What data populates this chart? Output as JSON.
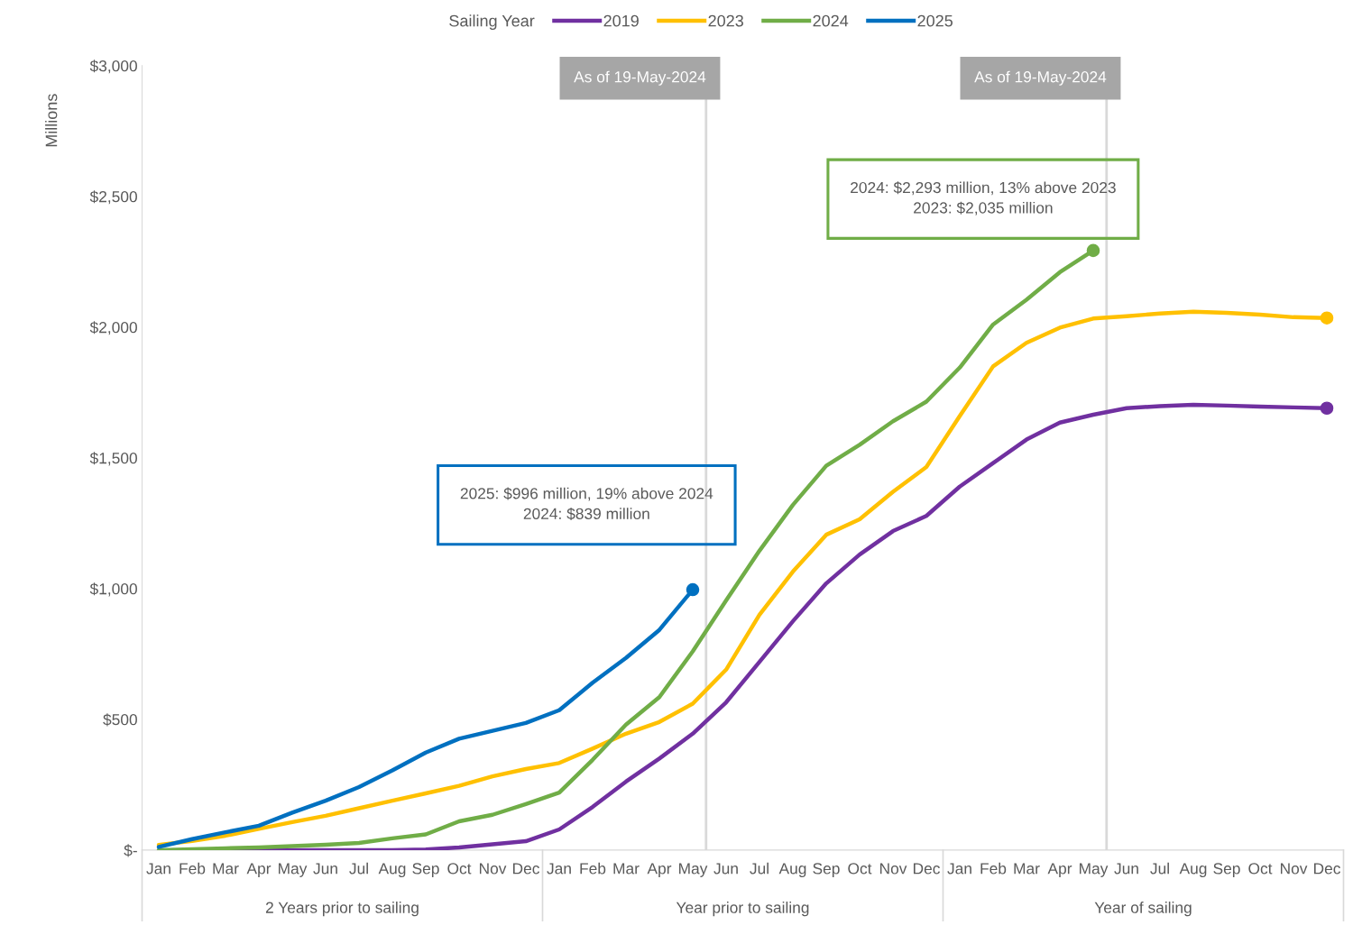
{
  "chart_data": {
    "type": "line",
    "legend_title": "Sailing Year",
    "ylabel": "Millions",
    "legend": "top",
    "categories": [
      "Jan",
      "Feb",
      "Mar",
      "Apr",
      "May",
      "Jun",
      "Jul",
      "Aug",
      "Sep",
      "Oct",
      "Nov",
      "Dec",
      "Jan",
      "Feb",
      "Mar",
      "Apr",
      "May",
      "Jun",
      "Jul",
      "Aug",
      "Sep",
      "Oct",
      "Nov",
      "Dec",
      "Jan",
      "Feb",
      "Mar",
      "Apr",
      "May",
      "Jun",
      "Jul",
      "Aug",
      "Sep",
      "Oct",
      "Nov",
      "Dec"
    ],
    "ylim": [
      0,
      3000
    ],
    "yticks": [
      {
        "value": 0,
        "label": "$-"
      },
      {
        "value": 500,
        "label": "$500"
      },
      {
        "value": 1000,
        "label": "$1,000"
      },
      {
        "value": 1500,
        "label": "$1,500"
      },
      {
        "value": 2000,
        "label": "$2,000"
      },
      {
        "value": 2500,
        "label": "$2,500"
      },
      {
        "value": 3000,
        "label": "$3,000"
      }
    ],
    "series": [
      {
        "name": "2019",
        "color": "#7030a0",
        "values": [
          null,
          null,
          0,
          0,
          0,
          0,
          0,
          0,
          2,
          10,
          22,
          34,
          79,
          165,
          262,
          350,
          445,
          565,
          720,
          875,
          1020,
          1130,
          1220,
          1278,
          1390,
          1480,
          1570,
          1635,
          1665,
          1690,
          1698,
          1703,
          1700,
          1696,
          1693,
          1690
        ]
      },
      {
        "name": "2023",
        "color": "#ffc000",
        "values": [
          20,
          35,
          55,
          81,
          107,
          131,
          160,
          189,
          217,
          246,
          282,
          310,
          333,
          388,
          445,
          490,
          560,
          690,
          900,
          1065,
          1206,
          1265,
          1370,
          1465,
          1660,
          1850,
          1940,
          1998,
          2033,
          2042,
          2052,
          2059,
          2055,
          2048,
          2038,
          2035
        ]
      },
      {
        "name": "2024",
        "color": "#70ad47",
        "values": [
          0,
          3,
          7,
          10,
          15,
          20,
          27,
          45,
          60,
          110,
          135,
          176,
          220,
          345,
          480,
          585,
          760,
          955,
          1145,
          1320,
          1470,
          1550,
          1640,
          1715,
          1845,
          2010,
          2105,
          2210,
          2293,
          null,
          null,
          null,
          null,
          null,
          null,
          null
        ]
      },
      {
        "name": "2025",
        "color": "#0070c0",
        "values": [
          12,
          42,
          68,
          93,
          143,
          189,
          241,
          305,
          373,
          426,
          456,
          486,
          535,
          640,
          735,
          842,
          996,
          null,
          null,
          null,
          null,
          null,
          null,
          null,
          null,
          null,
          null,
          null,
          null,
          null,
          null,
          null,
          null,
          null,
          null,
          null
        ]
      },
      {
        "type": "scatter",
        "color": "#7030a0",
        "values": [
          null,
          null,
          null,
          null,
          null,
          null,
          null,
          null,
          null,
          null,
          null,
          null,
          null,
          null,
          null,
          null,
          null,
          null,
          null,
          null,
          null,
          null,
          null,
          null,
          null,
          null,
          null,
          null,
          null,
          null,
          null,
          null,
          null,
          null,
          null,
          1690
        ]
      },
      {
        "type": "scatter",
        "color": "#ffc000",
        "values": [
          null,
          null,
          null,
          null,
          null,
          null,
          null,
          null,
          null,
          null,
          null,
          null,
          null,
          null,
          null,
          null,
          null,
          null,
          null,
          null,
          null,
          null,
          null,
          null,
          null,
          null,
          null,
          null,
          null,
          null,
          null,
          null,
          null,
          null,
          null,
          2035
        ]
      },
      {
        "type": "scatter",
        "color": "#70ad47",
        "values": [
          null,
          null,
          null,
          null,
          null,
          null,
          null,
          null,
          null,
          null,
          null,
          null,
          null,
          null,
          null,
          null,
          null,
          null,
          null,
          null,
          null,
          null,
          null,
          null,
          null,
          null,
          null,
          null,
          2293,
          null,
          null,
          null,
          null,
          null,
          null,
          null
        ]
      },
      {
        "type": "scatter",
        "color": "#0070c0",
        "values": [
          null,
          null,
          null,
          null,
          null,
          null,
          null,
          null,
          null,
          null,
          null,
          null,
          null,
          null,
          null,
          null,
          996,
          null,
          null,
          null,
          null,
          null,
          null,
          null,
          null,
          null,
          null,
          null,
          null,
          null,
          null,
          null,
          null,
          null,
          null,
          null
        ]
      }
    ],
    "annotations": [
      "As of 19-May-2024",
      "As of 19-May-2024",
      "2025: $996 million, 19% above 2024\n2024: $839 million",
      "2024: $2,293 million, 13% above 2023\n2023: $2,035 million",
      "2 Years prior to sailing",
      "Year prior to sailing",
      "Year of sailing"
    ]
  }
}
